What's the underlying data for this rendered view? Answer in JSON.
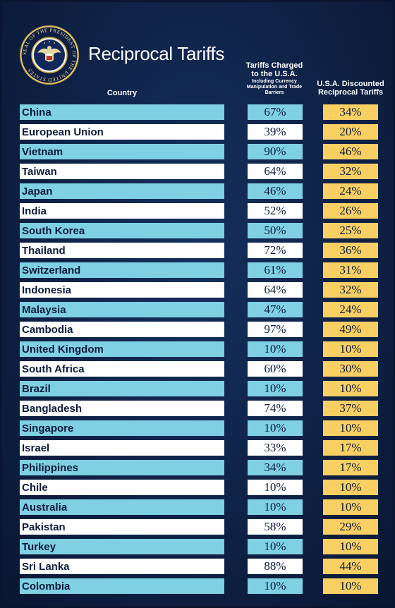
{
  "title": "Reciprocal Tariffs",
  "seal_text": "SEAL OF THE PRESIDENT OF THE UNITED STATES",
  "colors": {
    "background": "#0f2246",
    "row_blue": "#7fd0e3",
    "row_white": "#ffffff",
    "reciprocal_gold": "#f8cf63"
  },
  "headers": {
    "country": "Country",
    "charged_main": "Tariffs Charged to the U.S.A.",
    "charged_sub": "Including Currency Manipulation and Trade Barriers",
    "reciprocal": "U.S.A. Discounted Reciprocal Tariffs"
  },
  "chart_data": {
    "type": "table",
    "title": "Reciprocal Tariffs",
    "columns": [
      "Country",
      "Tariffs Charged to the U.S.A. Including Currency Manipulation and Trade Barriers",
      "U.S.A. Discounted Reciprocal Tariffs"
    ],
    "rows": [
      {
        "country": "China",
        "charged": "67%",
        "reciprocal": "34%"
      },
      {
        "country": "European Union",
        "charged": "39%",
        "reciprocal": "20%"
      },
      {
        "country": "Vietnam",
        "charged": "90%",
        "reciprocal": "46%"
      },
      {
        "country": "Taiwan",
        "charged": "64%",
        "reciprocal": "32%"
      },
      {
        "country": "Japan",
        "charged": "46%",
        "reciprocal": "24%"
      },
      {
        "country": "India",
        "charged": "52%",
        "reciprocal": "26%"
      },
      {
        "country": "South Korea",
        "charged": "50%",
        "reciprocal": "25%"
      },
      {
        "country": "Thailand",
        "charged": "72%",
        "reciprocal": "36%"
      },
      {
        "country": "Switzerland",
        "charged": "61%",
        "reciprocal": "31%"
      },
      {
        "country": "Indonesia",
        "charged": "64%",
        "reciprocal": "32%"
      },
      {
        "country": "Malaysia",
        "charged": "47%",
        "reciprocal": "24%"
      },
      {
        "country": "Cambodia",
        "charged": "97%",
        "reciprocal": "49%"
      },
      {
        "country": "United Kingdom",
        "charged": "10%",
        "reciprocal": "10%"
      },
      {
        "country": "South Africa",
        "charged": "60%",
        "reciprocal": "30%"
      },
      {
        "country": "Brazil",
        "charged": "10%",
        "reciprocal": "10%"
      },
      {
        "country": "Bangladesh",
        "charged": "74%",
        "reciprocal": "37%"
      },
      {
        "country": "Singapore",
        "charged": "10%",
        "reciprocal": "10%"
      },
      {
        "country": "Israel",
        "charged": "33%",
        "reciprocal": "17%"
      },
      {
        "country": "Philippines",
        "charged": "34%",
        "reciprocal": "17%"
      },
      {
        "country": "Chile",
        "charged": "10%",
        "reciprocal": "10%"
      },
      {
        "country": "Australia",
        "charged": "10%",
        "reciprocal": "10%"
      },
      {
        "country": "Pakistan",
        "charged": "58%",
        "reciprocal": "29%"
      },
      {
        "country": "Turkey",
        "charged": "10%",
        "reciprocal": "10%"
      },
      {
        "country": "Sri Lanka",
        "charged": "88%",
        "reciprocal": "44%"
      },
      {
        "country": "Colombia",
        "charged": "10%",
        "reciprocal": "10%"
      }
    ]
  }
}
